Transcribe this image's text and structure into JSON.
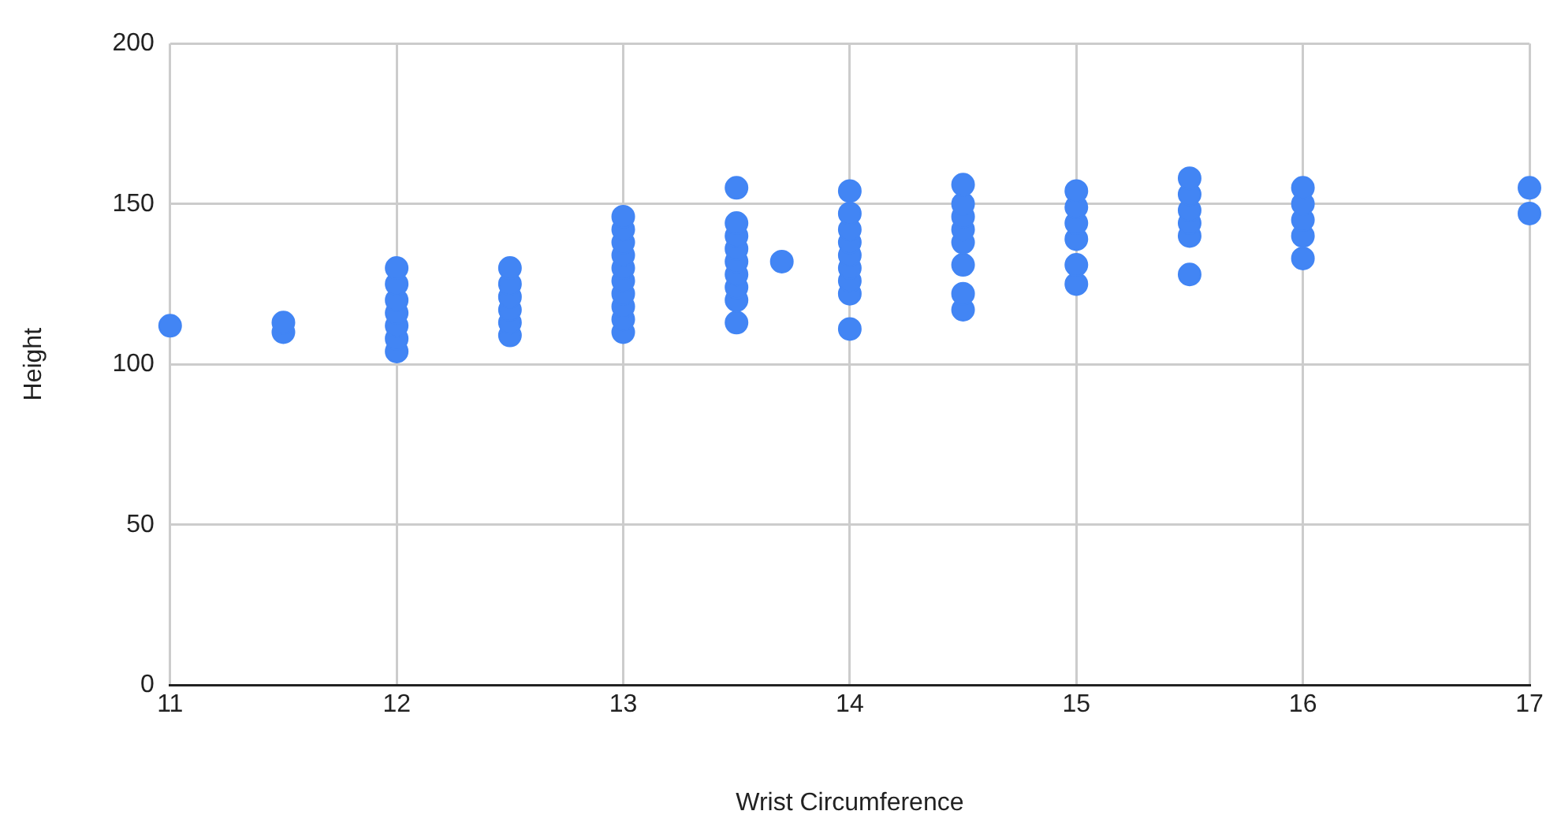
{
  "chart_data": {
    "type": "scatter",
    "xlabel": "Wrist Circumference",
    "ylabel": "Height",
    "xlim": [
      11,
      17
    ],
    "xticks": [
      11,
      12,
      13,
      14,
      15,
      16,
      17
    ],
    "ylim": [
      0,
      200
    ],
    "yticks": [
      0,
      50,
      100,
      150,
      200
    ],
    "grid": true,
    "legend": false,
    "marker": "circle",
    "series": [
      {
        "color": "#4285f4",
        "x": [
          11,
          11.5,
          11.5,
          12,
          12,
          12,
          12,
          12,
          12,
          12,
          12.5,
          12.5,
          12.5,
          12.5,
          12.5,
          12.5,
          13,
          13,
          13,
          13,
          13,
          13,
          13,
          13,
          13,
          13,
          13.5,
          13.5,
          13.5,
          13.5,
          13.5,
          13.5,
          13.5,
          13.5,
          13.5,
          13.7,
          14,
          14,
          14,
          14,
          14,
          14,
          14,
          14,
          14,
          14.5,
          14.5,
          14.5,
          14.5,
          14.5,
          14.5,
          14.5,
          14.5,
          15,
          15,
          15,
          15,
          15,
          15,
          15.5,
          15.5,
          15.5,
          15.5,
          15.5,
          15.5,
          16,
          16,
          16,
          16,
          16,
          17,
          17
        ],
        "values": [
          112,
          110,
          113,
          104,
          108,
          112,
          116,
          120,
          125,
          130,
          109,
          113,
          117,
          121,
          125,
          130,
          110,
          114,
          118,
          122,
          126,
          130,
          134,
          138,
          142,
          146,
          113,
          120,
          124,
          128,
          132,
          136,
          140,
          144,
          155,
          132,
          111,
          122,
          126,
          130,
          134,
          138,
          142,
          147,
          154,
          117,
          122,
          131,
          138,
          142,
          146,
          150,
          156,
          125,
          131,
          139,
          144,
          149,
          154,
          128,
          140,
          144,
          148,
          153,
          158,
          133,
          140,
          145,
          150,
          155,
          147,
          155
        ]
      }
    ]
  }
}
